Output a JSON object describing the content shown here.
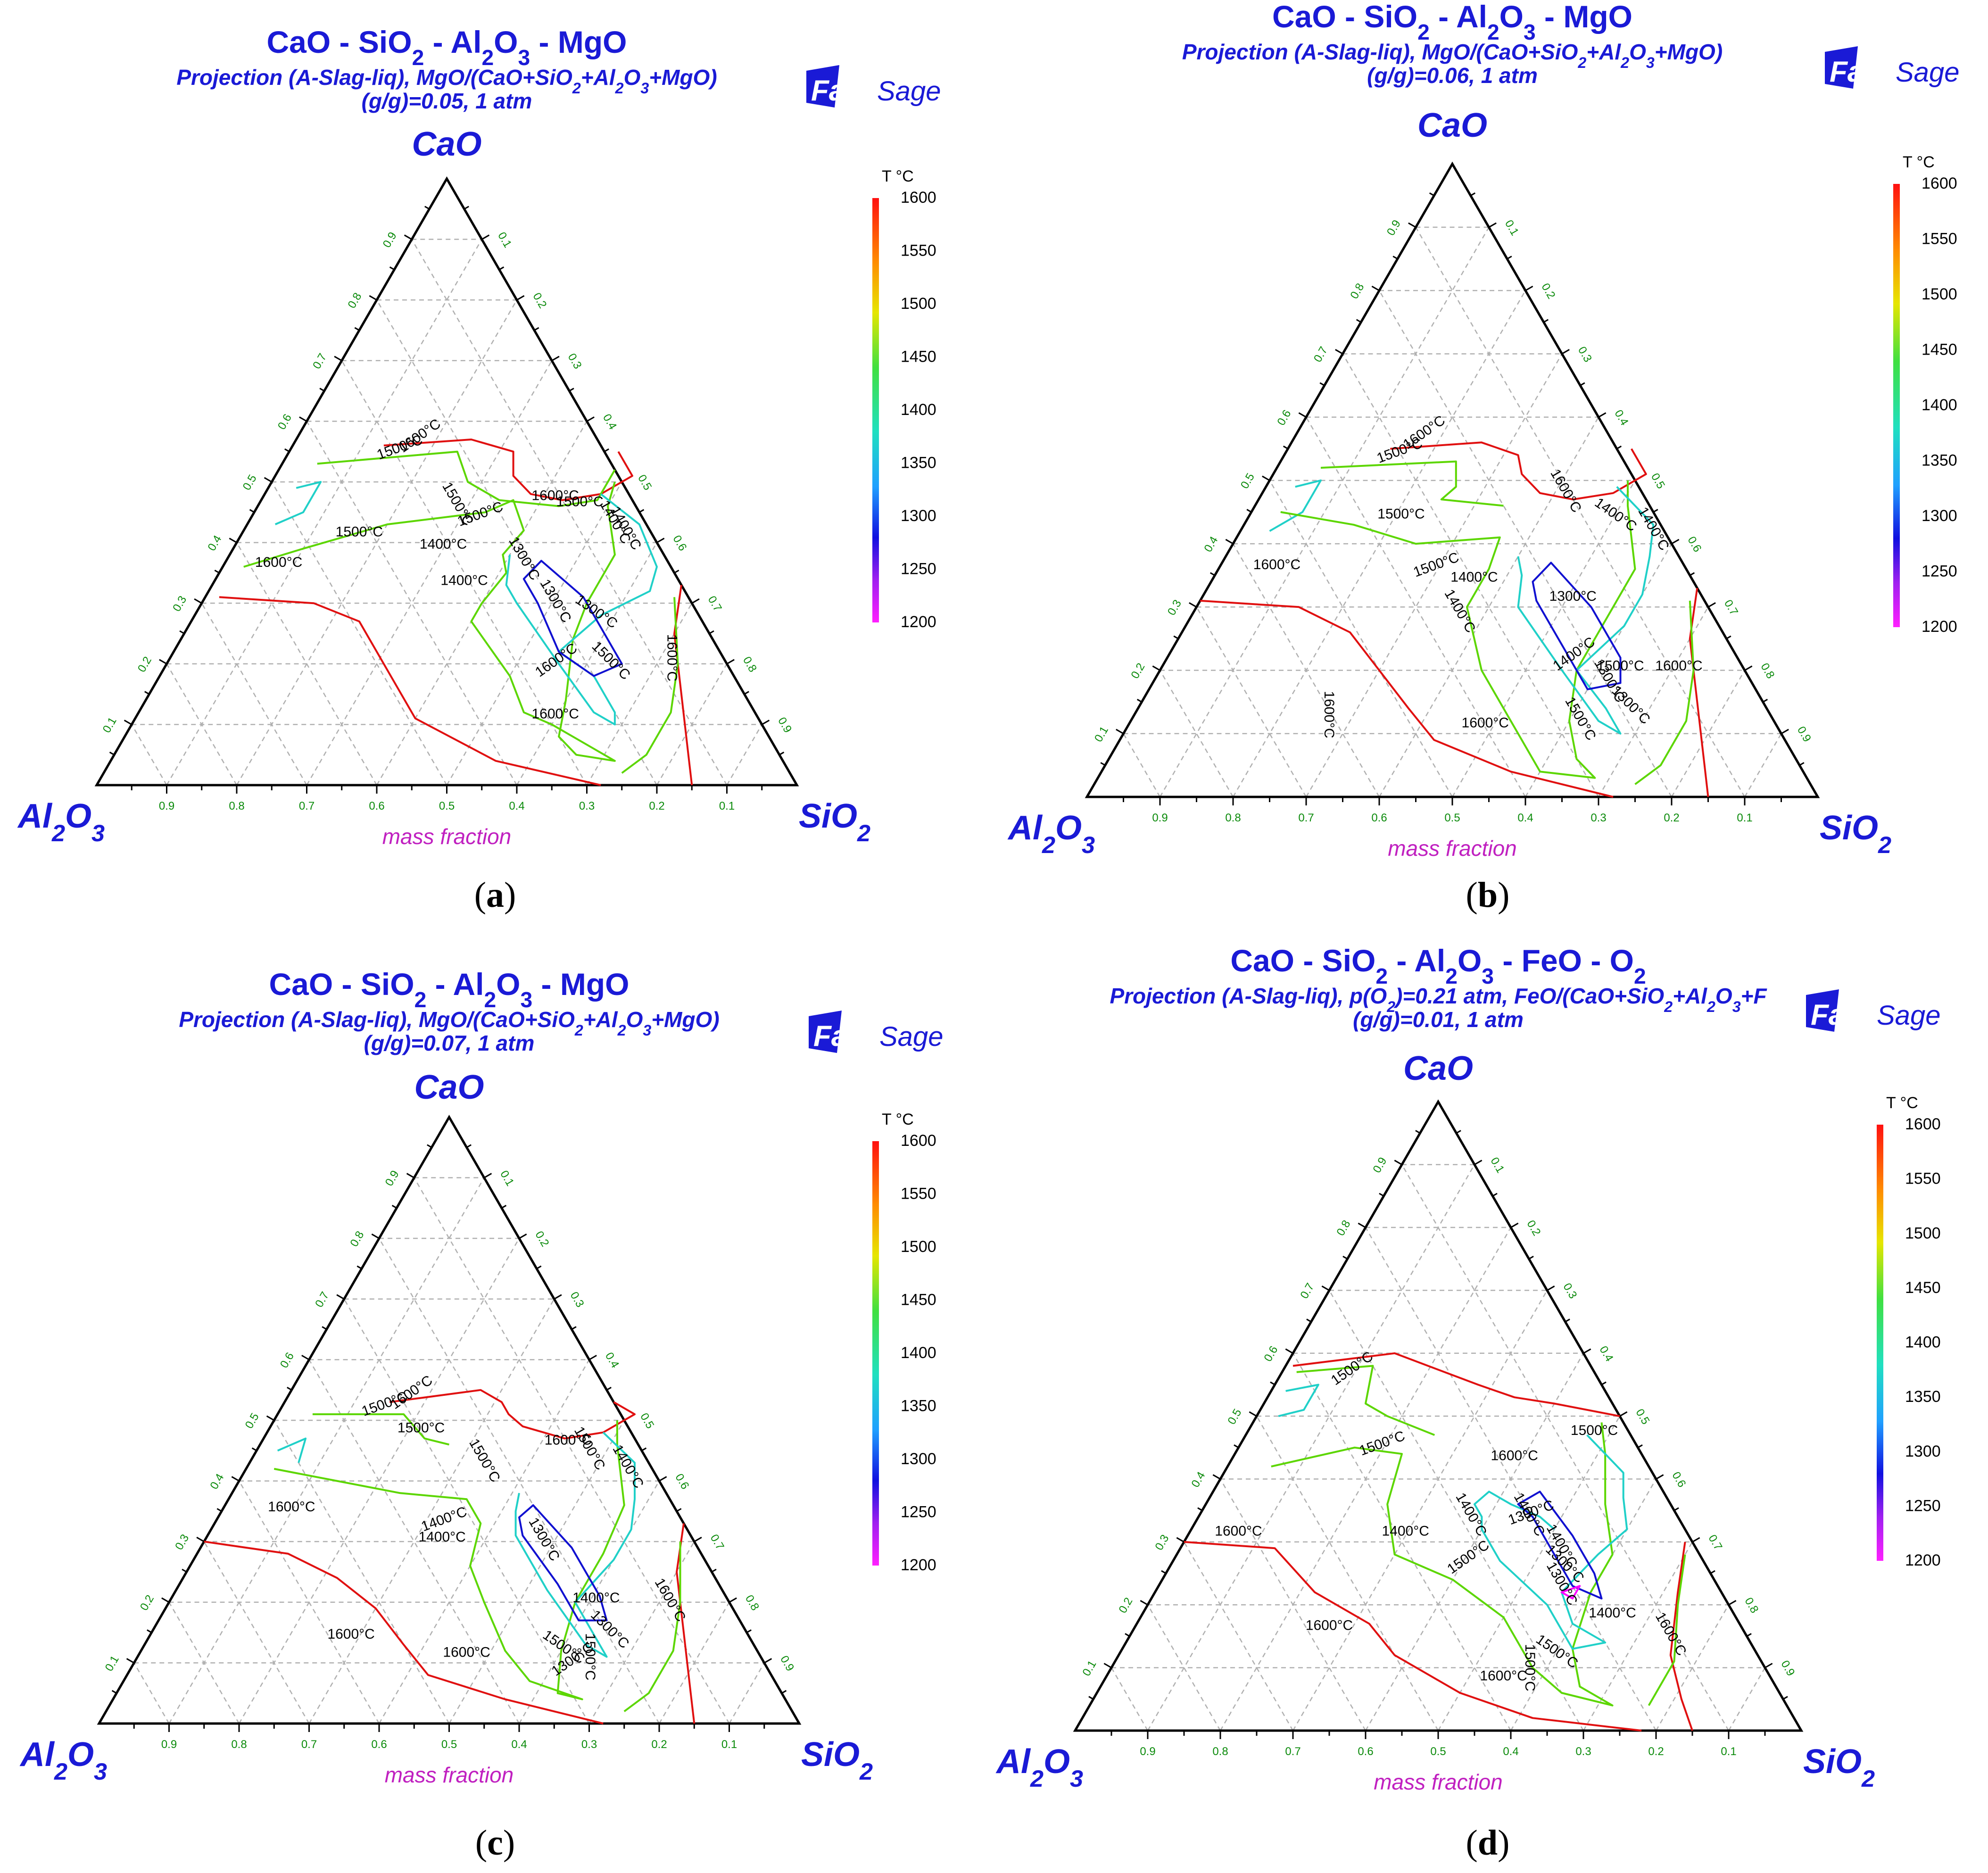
{
  "common": {
    "apex": "CaO",
    "left_vertex": "Al2O3",
    "right_vertex": "SiO2",
    "axis_label": "mass fraction",
    "logo_bold": "Fact",
    "logo_rest": "Sage",
    "colorbar_title": "T °C",
    "colorbar_ticks": [
      "1600",
      "1550",
      "1500",
      "1450",
      "1400",
      "1350",
      "1300",
      "1250",
      "1200"
    ],
    "bottom_ticks": [
      "0.9",
      "0.8",
      "0.7",
      "0.6",
      "0.5",
      "0.4",
      "0.3",
      "0.2",
      "0.1"
    ],
    "left_ticks": [
      "0.1",
      "0.2",
      "0.3",
      "0.4",
      "0.5",
      "0.6",
      "0.7",
      "0.8",
      "0.9"
    ],
    "right_ticks": [
      "0.1",
      "0.2",
      "0.3",
      "0.4",
      "0.5",
      "0.6",
      "0.7",
      "0.8",
      "0.9"
    ],
    "colors": {
      "title": "#1a1ad6",
      "axis_label": "#c020c0",
      "tick": "#0a8a0a",
      "c1600": "#e01010",
      "c1500": "#5cd600",
      "c1400": "#20d0c8",
      "c1300": "#1010d0",
      "c1200": "#ff00ff"
    }
  },
  "panels": [
    {
      "letter": "a",
      "title": [
        "CaO - SiO",
        "2",
        " - Al",
        "2",
        "O",
        "3",
        " - MgO"
      ],
      "subtitle1": [
        "Projection (A-Slag-liq), MgO/(CaO+SiO",
        "2",
        "+Al",
        "2",
        "O",
        "3",
        "+MgO)"
      ],
      "subtitle2": "(g/g)=0.05, 1 atm",
      "contour_labels": [
        "1600°C",
        "1500°C",
        "1600°C",
        "1500°C",
        "1500°C",
        "1500°C",
        "1400°C",
        "1300°C",
        "1400°C",
        "1300°C",
        "1400°C",
        "1500°C",
        "1600°C",
        "1600°C",
        "1600°C",
        "1600°C",
        "1500°C",
        "1400°C",
        "1300°C"
      ]
    },
    {
      "letter": "b",
      "title": [
        "CaO - SiO",
        "2",
        " - Al",
        "2",
        "O",
        "3",
        " - MgO"
      ],
      "subtitle1": [
        "Projection (A-Slag-liq), MgO/(CaO+SiO",
        "2",
        "+Al",
        "2",
        "O",
        "3",
        "+MgO)"
      ],
      "subtitle2": "(g/g)=0.06, 1 atm",
      "contour_labels": [
        "1600°C",
        "1500°C",
        "1600°C",
        "1500°C",
        "1600°C",
        "1500°C",
        "1400°C",
        "1400°C",
        "1300°C",
        "1400°C",
        "1300°C",
        "1300°C",
        "1400°C",
        "1500°C",
        "1600°C",
        "1600°C",
        "1600°C",
        "1500°C",
        "1400°C"
      ]
    },
    {
      "letter": "c",
      "title": [
        "CaO - SiO",
        "2",
        " - Al",
        "2",
        "O",
        "3",
        " - MgO"
      ],
      "subtitle1": [
        "Projection (A-Slag-liq), MgO/(CaO+SiO",
        "2",
        "+Al",
        "2",
        "O",
        "3",
        "+MgO)"
      ],
      "subtitle2": "(g/g)=0.07, 1 atm",
      "contour_labels": [
        "1600°C",
        "1500°C",
        "1500°C",
        "1600°C",
        "1500°C",
        "1400°C",
        "1600°C",
        "1500°C",
        "1400°C",
        "1400°C",
        "1300°C",
        "1300°C",
        "1300°C",
        "1400°C",
        "1500°C",
        "1600°C",
        "1600°C",
        "1600°C",
        "1500°C"
      ]
    },
    {
      "letter": "d",
      "title": [
        "CaO - SiO",
        "2",
        " - Al",
        "2",
        "O",
        "3",
        " - FeO - O",
        "2",
        ""
      ],
      "subtitle1": [
        "Projection (A-Slag-liq), p(O",
        "2",
        ")=0.21 atm, FeO/(CaO+SiO",
        "2",
        "+Al",
        "2",
        "O",
        "3",
        "+F"
      ],
      "subtitle2": "(g/g)=0.01, 1 atm",
      "contour_labels": [
        "1500°C",
        "1500°C",
        "1600°C",
        "1500°C",
        "1400°C",
        "1300°C",
        "1600°C",
        "1400°C",
        "1400°C",
        "1300°C",
        "1400°C",
        "1300°C",
        "1500°C",
        "1400°C",
        "1500°C",
        "1600°C",
        "1600°C",
        "1600°C",
        "1500°C"
      ]
    }
  ]
}
